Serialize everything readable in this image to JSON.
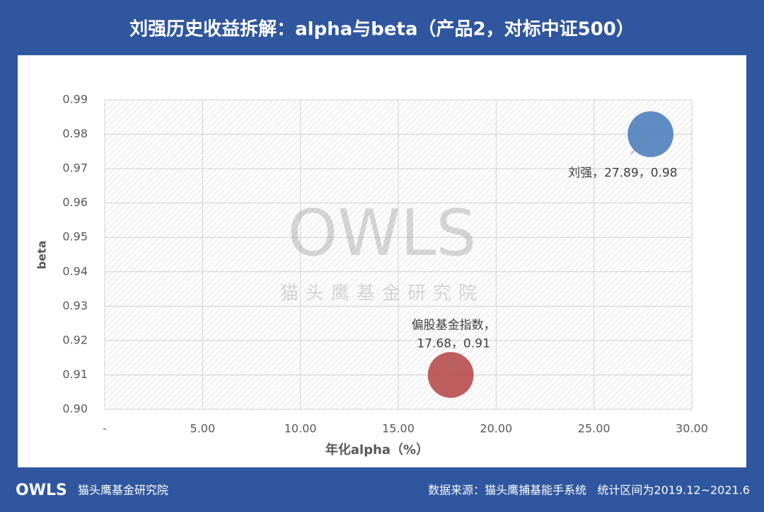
{
  "chart_data": {
    "type": "bubble",
    "title": "刘强历史收益拆解：alpha与beta（产品2，对标中证500）",
    "x_label": "年化alpha（%）",
    "y_label": "beta",
    "series": [
      {
        "name": "刘强",
        "color": "#4f7fbe",
        "x": [
          27.89
        ],
        "values": [
          0.98
        ]
      },
      {
        "name": "偏股基金指数",
        "color": "#b84d4d",
        "x": [
          17.68
        ],
        "values": [
          0.91
        ]
      }
    ],
    "data_label_separator": "，",
    "xlim": [
      0,
      30
    ],
    "xticks": [
      {
        "value": 0,
        "label": "-"
      },
      {
        "value": 5,
        "label": "5.00"
      },
      {
        "value": 10,
        "label": "10.00"
      },
      {
        "value": 15,
        "label": "15.00"
      },
      {
        "value": 20,
        "label": "20.00"
      },
      {
        "value": 25,
        "label": "25.00"
      },
      {
        "value": 30,
        "label": "30.00"
      }
    ],
    "ylim": [
      0.9,
      0.99
    ],
    "yticks": [
      {
        "value": 0.9,
        "label": "0.90"
      },
      0.91,
      0.92,
      0.93,
      0.94,
      0.95,
      0.96,
      0.97,
      0.98,
      0.99
    ],
    "grid": true,
    "watermark": {
      "logo": "OWLS",
      "text": "猫头鹰基金研究院"
    },
    "footer": {
      "brand": "猫头鹰基金研究院",
      "logo": "OWLS",
      "source": "数据来源：猫头鹰捕基能手系统   统计区间为2019.12~2021.6"
    }
  }
}
